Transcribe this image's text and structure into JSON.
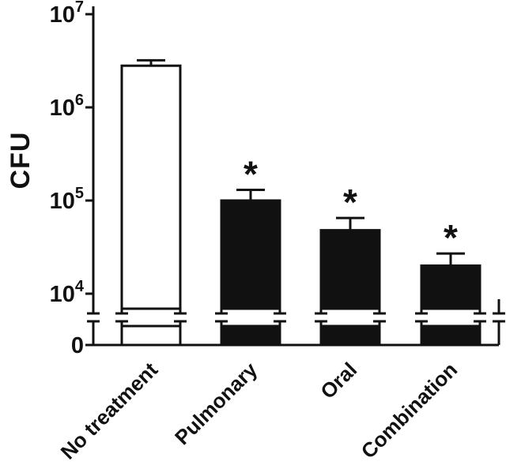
{
  "figure": {
    "background": "#ffffff",
    "ink": "#111111"
  },
  "chart_data": {
    "type": "bar",
    "title": "",
    "xlabel": "",
    "ylabel": "CFU",
    "scale": "log10 y-axis with axis break to 0",
    "grid": false,
    "legend": "none",
    "axis_break": true,
    "ylim": [
      10000,
      10000000
    ],
    "categories": [
      "No treatment",
      "Pulmonary",
      "Oral",
      "Combination"
    ],
    "series": [
      {
        "name": "CFU",
        "values": [
          2800000,
          100000,
          48000,
          20000
        ]
      }
    ],
    "error_upper_abs": [
      3200000,
      130000,
      65000,
      27000
    ],
    "significance": [
      "",
      "*",
      "*",
      "*"
    ],
    "bar_fill": [
      "#ffffff",
      "#111111",
      "#111111",
      "#111111"
    ],
    "yticks": [
      {
        "label": "10",
        "exp": "7",
        "value": 10000000
      },
      {
        "label": "10",
        "exp": "6",
        "value": 1000000
      },
      {
        "label": "10",
        "exp": "5",
        "value": 100000
      },
      {
        "label": "10",
        "exp": "4",
        "value": 10000
      },
      {
        "label": "0",
        "exp": "",
        "value": 0
      }
    ]
  }
}
